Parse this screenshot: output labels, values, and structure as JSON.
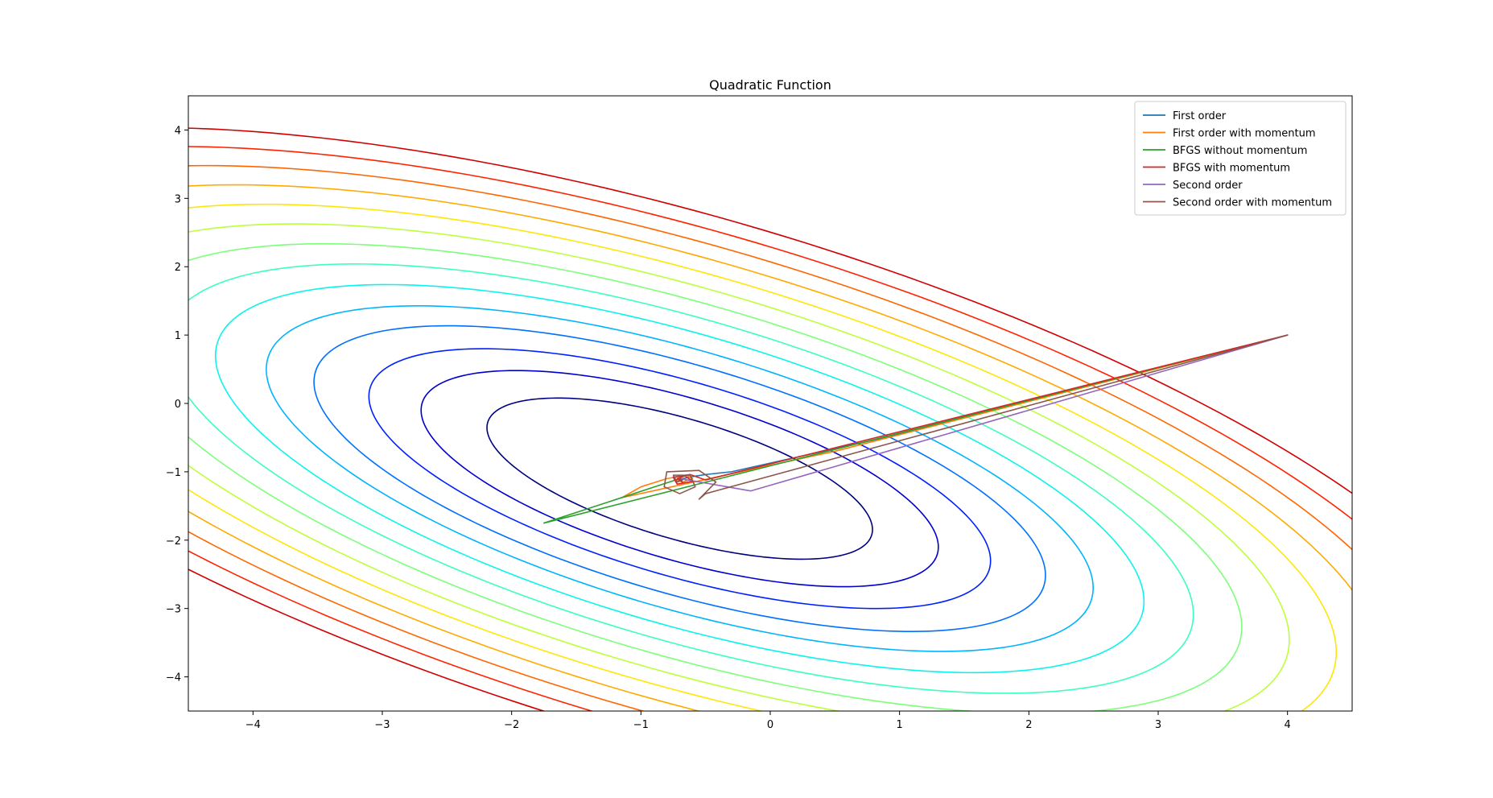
{
  "chart_data": {
    "type": "contour",
    "title": "Quadratic Function",
    "xlabel": "",
    "ylabel": "",
    "xlim": [
      -4.5,
      4.5
    ],
    "ylim": [
      -4.5,
      4.5
    ],
    "xticks": [
      -4,
      -3,
      -2,
      -1,
      0,
      1,
      2,
      3,
      4
    ],
    "yticks": [
      -4,
      -3,
      -2,
      -1,
      0,
      1,
      2,
      3,
      4
    ],
    "xtick_labels": [
      "−4",
      "−3",
      "−2",
      "−1",
      "0",
      "1",
      "2",
      "3",
      "4"
    ],
    "ytick_labels": [
      "−4",
      "−3",
      "−2",
      "−1",
      "0",
      "1",
      "2",
      "3",
      "4"
    ],
    "grid": false,
    "legend_position": "top-right",
    "contours": {
      "center": [
        -0.7,
        -1.1
      ],
      "shape": [
        [
          0.375,
          0.3
        ],
        [
          0.3,
          0.6
        ]
      ],
      "colormap": "jet",
      "levels": [
        0.5,
        0.9,
        1.3,
        1.8,
        2.3,
        2.9,
        3.55,
        4.25,
        5.0,
        5.8,
        6.65,
        7.55,
        8.5,
        9.5
      ],
      "colors": [
        "#000080",
        "#0000cd",
        "#0020ff",
        "#0070ff",
        "#00b4ff",
        "#0cf4ea",
        "#3bffbc",
        "#7dff7a",
        "#bdff3a",
        "#fee708",
        "#ffaa00",
        "#ff6600",
        "#ff2300",
        "#d00000",
        "#800000"
      ]
    },
    "series": [
      {
        "name": "First order",
        "color": "#1f77b4",
        "x": [
          4.0,
          1.0,
          -0.3,
          -0.5,
          -0.6,
          -0.65,
          -0.68,
          -0.7
        ],
        "y": [
          1.0,
          -0.45,
          -1.0,
          -1.04,
          -1.07,
          -1.09,
          -1.1,
          -1.1
        ]
      },
      {
        "name": "First order with momentum",
        "color": "#ff7f0e",
        "x": [
          4.0,
          0.5,
          -1.15,
          -1.0,
          -0.8,
          -0.65,
          -0.6,
          -0.68,
          -0.72,
          -0.7
        ],
        "y": [
          1.0,
          -0.7,
          -1.38,
          -1.22,
          -1.1,
          -1.05,
          -1.1,
          -1.15,
          -1.12,
          -1.1
        ]
      },
      {
        "name": "BFGS without momentum",
        "color": "#2ca02c",
        "x": [
          4.0,
          -1.75,
          -0.7
        ],
        "y": [
          1.0,
          -1.75,
          -1.1
        ]
      },
      {
        "name": "BFGS with momentum",
        "color": "#d62728",
        "x": [
          4.0,
          -0.5,
          -0.62,
          -0.75,
          -0.72,
          -0.6,
          -0.66,
          -0.72,
          -0.68,
          -0.7
        ],
        "y": [
          1.0,
          -1.12,
          -1.04,
          -1.08,
          -1.18,
          -1.14,
          -1.06,
          -1.1,
          -1.15,
          -1.1
        ]
      },
      {
        "name": "Second order",
        "color": "#9467bd",
        "x": [
          4.0,
          -0.15,
          -0.7
        ],
        "y": [
          1.0,
          -1.28,
          -1.1
        ]
      },
      {
        "name": "Second order with momentum",
        "color": "#8c564b",
        "x": [
          4.0,
          -0.5,
          -0.55,
          -0.42,
          -0.55,
          -0.8,
          -0.82,
          -0.7,
          -0.58,
          -0.62,
          -0.75,
          -0.72,
          -0.68,
          -0.7
        ],
        "y": [
          1.0,
          -1.32,
          -1.4,
          -1.15,
          -0.98,
          -1.0,
          -1.22,
          -1.32,
          -1.22,
          -1.05,
          -1.05,
          -1.15,
          -1.12,
          -1.1
        ]
      }
    ]
  }
}
